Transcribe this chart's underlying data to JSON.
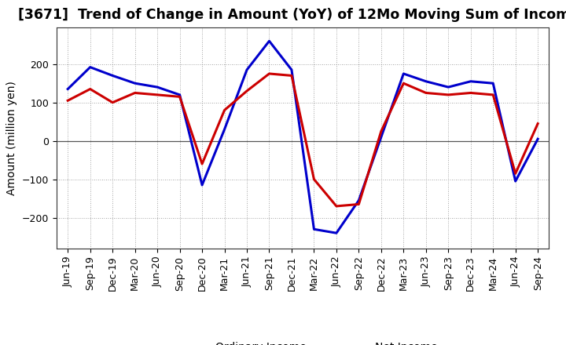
{
  "title": "[3671]  Trend of Change in Amount (YoY) of 12Mo Moving Sum of Incomes",
  "ylabel": "Amount (million yen)",
  "labels": [
    "Jun-19",
    "Sep-19",
    "Dec-19",
    "Mar-20",
    "Jun-20",
    "Sep-20",
    "Dec-20",
    "Mar-21",
    "Jun-21",
    "Sep-21",
    "Dec-21",
    "Mar-22",
    "Jun-22",
    "Sep-22",
    "Dec-22",
    "Mar-23",
    "Jun-23",
    "Sep-23",
    "Dec-23",
    "Mar-24",
    "Jun-24",
    "Sep-24"
  ],
  "ordinary_income": [
    135,
    192,
    170,
    150,
    140,
    120,
    -115,
    30,
    185,
    260,
    185,
    -230,
    -240,
    -155,
    10,
    175,
    155,
    140,
    155,
    150,
    -105,
    5
  ],
  "net_income": [
    105,
    135,
    100,
    125,
    120,
    115,
    -60,
    80,
    130,
    175,
    170,
    -100,
    -170,
    -165,
    25,
    150,
    125,
    120,
    125,
    120,
    -85,
    45
  ],
  "ordinary_color": "#0000cc",
  "net_color": "#cc0000",
  "line_width": 2.2,
  "ylim": [
    -280,
    295
  ],
  "yticks": [
    -200,
    -100,
    0,
    100,
    200
  ],
  "background_color": "#ffffff",
  "grid_color": "#888888",
  "title_fontsize": 12.5,
  "axis_label_fontsize": 10,
  "tick_fontsize": 9,
  "legend_fontsize": 10
}
